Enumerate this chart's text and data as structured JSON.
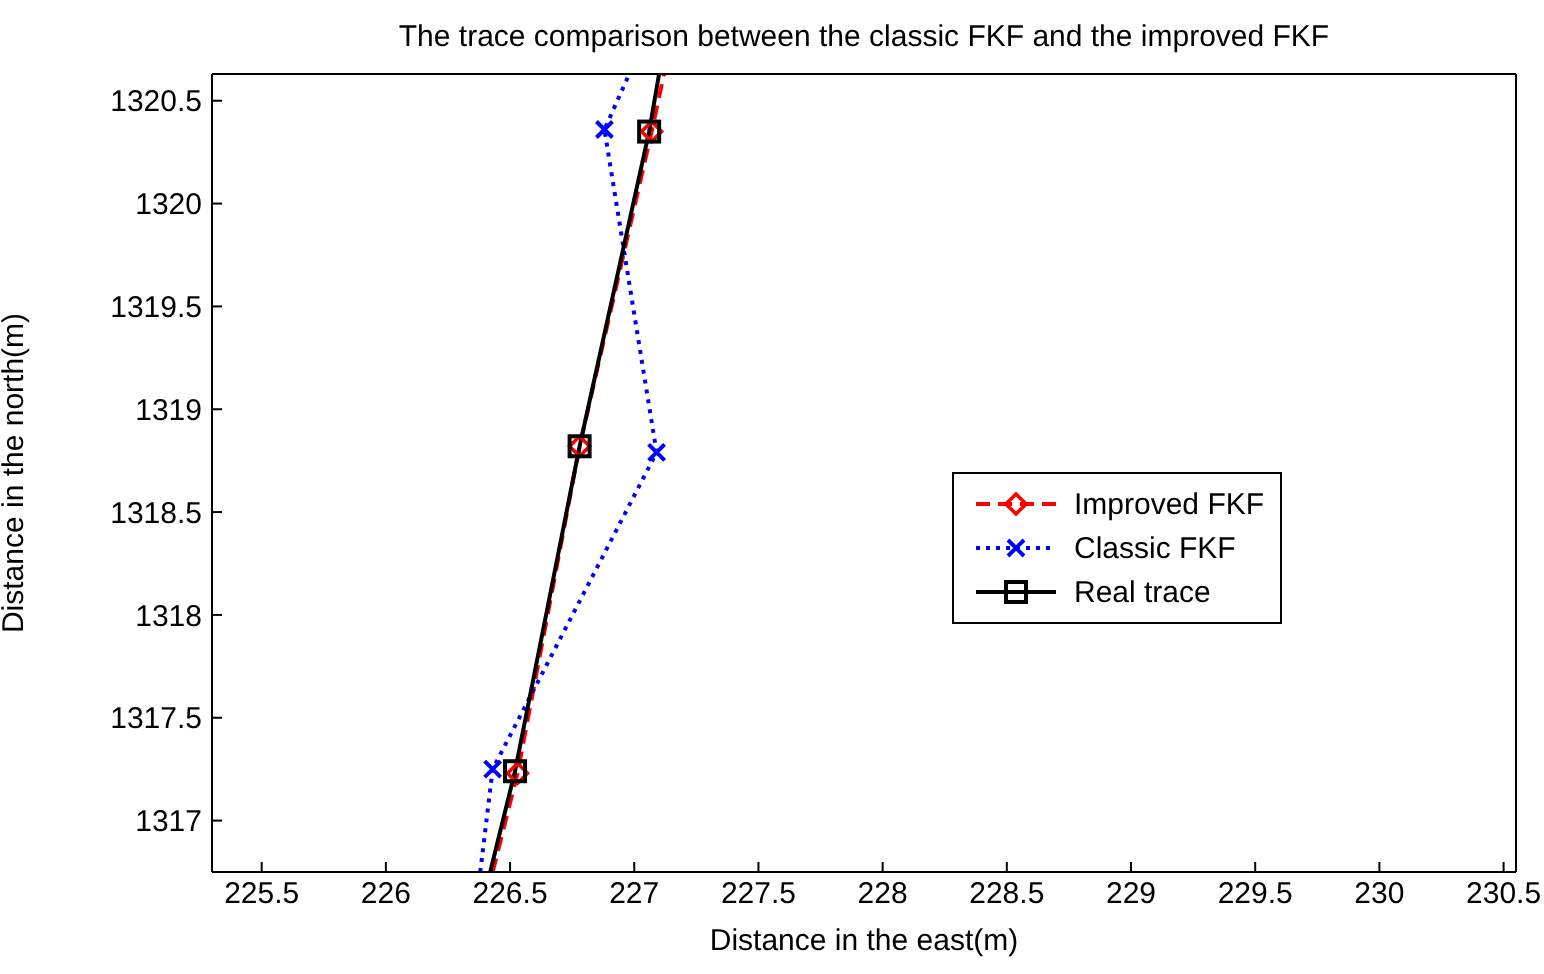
{
  "chart_data": {
    "type": "line",
    "title": "The trace comparison between the classic FKF and the improved FKF",
    "xlabel": "Distance in the east(m)",
    "ylabel": "Distance in the north(m)",
    "xlim": [
      225.3,
      230.55
    ],
    "xticks": [
      225.5,
      226,
      226.5,
      227,
      227.5,
      228,
      228.5,
      229,
      229.5,
      230,
      230.5
    ],
    "ylim": [
      1316.75,
      1320.63
    ],
    "yticks": [
      1317,
      1317.5,
      1318,
      1318.5,
      1319,
      1319.5,
      1320,
      1320.5
    ],
    "grid": false,
    "legend": "right",
    "series": [
      {
        "name": "Improved FKF",
        "color": "#ff0000",
        "marker": "diamond",
        "line_style": "dashed",
        "x": [
          226.43,
          226.53,
          226.78,
          227.07,
          227.12
        ],
        "values": [
          1316.75,
          1317.23,
          1318.82,
          1320.35,
          1320.63
        ]
      },
      {
        "name": "Classic FKF",
        "color": "#0000ff",
        "marker": "cross",
        "line_style": "dotted",
        "x": [
          226.38,
          226.43,
          227.09,
          226.88,
          226.98
        ],
        "values": [
          1316.75,
          1317.25,
          1318.79,
          1320.36,
          1320.63
        ]
      },
      {
        "name": "Real trace",
        "color": "#000000",
        "marker": "square",
        "line_style": "solid",
        "x": [
          226.42,
          226.52,
          226.78,
          227.06,
          227.1
        ],
        "values": [
          1316.75,
          1317.24,
          1318.82,
          1320.35,
          1320.63
        ]
      }
    ]
  }
}
